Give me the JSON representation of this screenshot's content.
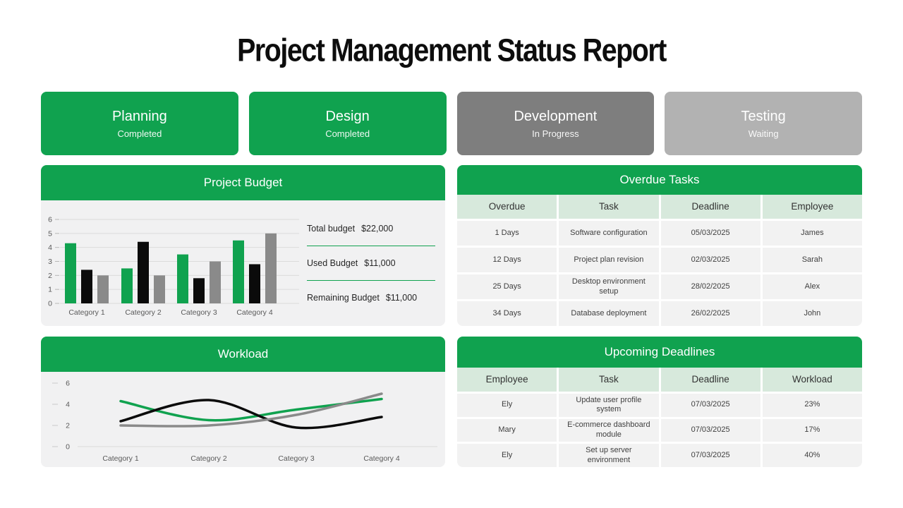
{
  "page": {
    "title": "Project Management Status Report"
  },
  "colors": {
    "green": "#10A24F",
    "dark_gray_card": "#7E7E7E",
    "light_gray_card": "#B2B2B2",
    "panel_body": "#F1F1F2",
    "table_header_bg": "#D7E9DC",
    "table_row_bg": "#F2F2F2",
    "bar_black": "#0B0B0B",
    "bar_gray": "#8A8A8A",
    "axis_text": "#595959",
    "grid_line": "#DBDBDB"
  },
  "status_cards": [
    {
      "name": "Planning",
      "status": "Completed",
      "bg": "#10A24F"
    },
    {
      "name": "Design",
      "status": "Completed",
      "bg": "#10A24F"
    },
    {
      "name": "Development",
      "status": "In Progress",
      "bg": "#7E7E7E"
    },
    {
      "name": "Testing",
      "status": "Waiting",
      "bg": "#B2B2B2"
    }
  ],
  "budget_panel": {
    "title": "Project Budget",
    "stats": [
      {
        "label": "Total budget",
        "value": "$22,000"
      },
      {
        "label": "Used Budget",
        "value": "$11,000"
      },
      {
        "label": "Remaining Budget",
        "value": "$11,000"
      }
    ]
  },
  "workload_panel": {
    "title": "Workload"
  },
  "overdue_table": {
    "title": "Overdue Tasks",
    "columns": [
      "Overdue",
      "Task",
      "Deadline",
      "Employee"
    ],
    "rows": [
      [
        "1 Days",
        "Software configuration",
        "05/03/2025",
        "James"
      ],
      [
        "12 Days",
        "Project plan revision",
        "02/03/2025",
        "Sarah"
      ],
      [
        "25 Days",
        "Desktop environment setup",
        "28/02/2025",
        "Alex"
      ],
      [
        "34 Days",
        "Database deployment",
        "26/02/2025",
        "John"
      ]
    ]
  },
  "deadlines_table": {
    "title": "Upcoming Deadlines",
    "columns": [
      "Employee",
      "Task",
      "Deadline",
      "Workload"
    ],
    "rows": [
      [
        "Ely",
        "Update user profile system",
        "07/03/2025",
        "23%"
      ],
      [
        "Mary",
        "E-commerce dashboard module",
        "07/03/2025",
        "17%"
      ],
      [
        "Ely",
        "Set up server environment",
        "07/03/2025",
        "40%"
      ]
    ]
  },
  "chart_data": [
    {
      "type": "bar",
      "title": "Project Budget",
      "categories": [
        "Category 1",
        "Category 2",
        "Category 3",
        "Category 4"
      ],
      "series": [
        {
          "name": "green",
          "color": "#10A24F",
          "values": [
            4.3,
            2.5,
            3.5,
            4.5
          ]
        },
        {
          "name": "black",
          "color": "#0B0B0B",
          "values": [
            2.4,
            4.4,
            1.8,
            2.8
          ]
        },
        {
          "name": "gray",
          "color": "#8A8A8A",
          "values": [
            2.0,
            2.0,
            3.0,
            5.0
          ]
        }
      ],
      "xlabel": "",
      "ylabel": "",
      "ylim": [
        0,
        6
      ],
      "yticks": [
        0,
        1,
        2,
        3,
        4,
        5,
        6
      ],
      "grid": true,
      "legend": false
    },
    {
      "type": "line",
      "title": "Workload",
      "categories": [
        "Category 1",
        "Category 2",
        "Category 3",
        "Category 4"
      ],
      "series": [
        {
          "name": "green",
          "color": "#10A24F",
          "values": [
            4.3,
            2.5,
            3.5,
            4.5
          ]
        },
        {
          "name": "black",
          "color": "#0B0B0B",
          "values": [
            2.4,
            4.4,
            1.8,
            2.8
          ]
        },
        {
          "name": "gray",
          "color": "#8A8A8A",
          "values": [
            2.0,
            2.0,
            3.0,
            5.0
          ]
        }
      ],
      "xlabel": "",
      "ylabel": "",
      "ylim": [
        0,
        6
      ],
      "yticks": [
        0,
        2,
        4,
        6
      ],
      "grid": false,
      "legend": false,
      "smooth": true
    }
  ]
}
